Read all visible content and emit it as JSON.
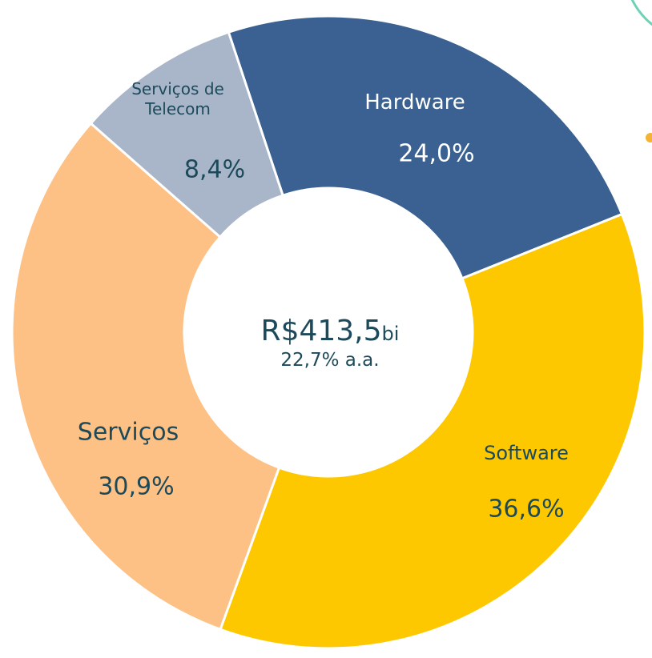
{
  "chart_data": {
    "type": "donut",
    "categories": [
      "Hardware",
      "Software",
      "Serviços",
      "Serviços de Telecom"
    ],
    "values": [
      24.0,
      36.6,
      30.9,
      8.4
    ],
    "value_labels": [
      "24,0%",
      "36,6%",
      "30,9%",
      "8,4%"
    ],
    "colors": [
      "#3a6191",
      "#fdc800",
      "#fdc085",
      "#a9b6c9"
    ],
    "center_label": "R$413,5",
    "center_unit": "bi",
    "center_sublabel": "22,7% a.a."
  }
}
